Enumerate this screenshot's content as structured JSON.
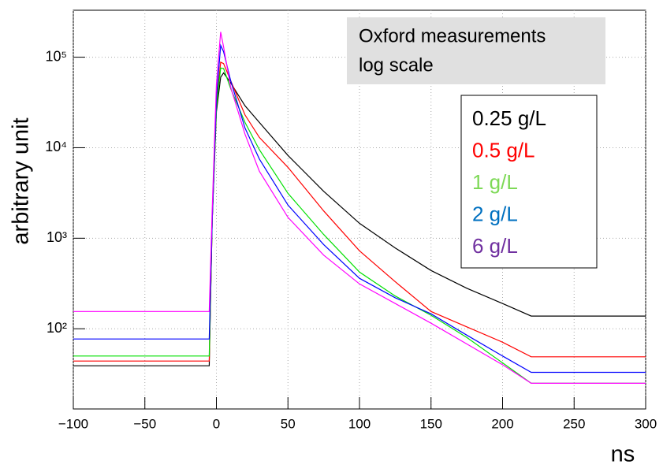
{
  "chart_data": {
    "type": "line",
    "x": [
      -100,
      -5,
      -3,
      0,
      3,
      5,
      10,
      20,
      30,
      50,
      75,
      100,
      125,
      150,
      175,
      200,
      220,
      300
    ],
    "series": [
      {
        "name": "0.25 g/L",
        "color": "#000000",
        "label_color": "#000000",
        "values": [
          39,
          39,
          1500,
          25000,
          60000,
          67000,
          52000,
          29000,
          19000,
          8200,
          3300,
          1460,
          780,
          440,
          280,
          190,
          138,
          138
        ]
      },
      {
        "name": "0.5 g/L",
        "color": "#ff0000",
        "label_color": "#ff0000",
        "values": [
          44,
          44,
          1500,
          30000,
          88000,
          85000,
          55000,
          23000,
          13000,
          6070,
          2000,
          726,
          330,
          155,
          105,
          71,
          49,
          49
        ]
      },
      {
        "name": "1 g/L",
        "color": "#00e000",
        "label_color": "#7ed957",
        "values": [
          50,
          50,
          1500,
          28000,
          76000,
          75000,
          45000,
          19000,
          9500,
          3130,
          1100,
          423,
          230,
          141,
          80,
          42,
          25,
          25
        ]
      },
      {
        "name": "2 g/L",
        "color": "#0000ff",
        "label_color": "#0070c0",
        "values": [
          77,
          77,
          1500,
          35000,
          135000,
          115000,
          55000,
          16500,
          7500,
          2320,
          850,
          361,
          220,
          146,
          85,
          50,
          33,
          33
        ]
      },
      {
        "name": "6 g/L",
        "color": "#ff00ff",
        "label_color": "#7030a0",
        "values": [
          155,
          155,
          2000,
          50000,
          190000,
          130000,
          46600,
          14100,
          5500,
          1700,
          650,
          313,
          190,
          115,
          68,
          40,
          25,
          25
        ]
      }
    ],
    "xlim": [
      -100,
      300
    ],
    "xticks": [
      {
        "value": -100,
        "label": "−100"
      },
      {
        "value": -50,
        "label": "−50"
      },
      0,
      50,
      100,
      150,
      200,
      250,
      300
    ],
    "ylim": [
      13,
      330000
    ],
    "log_y": true,
    "yticks": [
      {
        "value": 100,
        "label": "10²"
      },
      {
        "value": 1000,
        "label": "10³"
      },
      {
        "value": 10000,
        "label": "10⁴"
      },
      {
        "value": 100000,
        "label": "10⁵"
      }
    ],
    "grid": true,
    "x_label": "ns",
    "y_label": "arbitrary unit",
    "annotation": [
      "Oxford measurements",
      "log scale"
    ],
    "legend": "top-right"
  }
}
